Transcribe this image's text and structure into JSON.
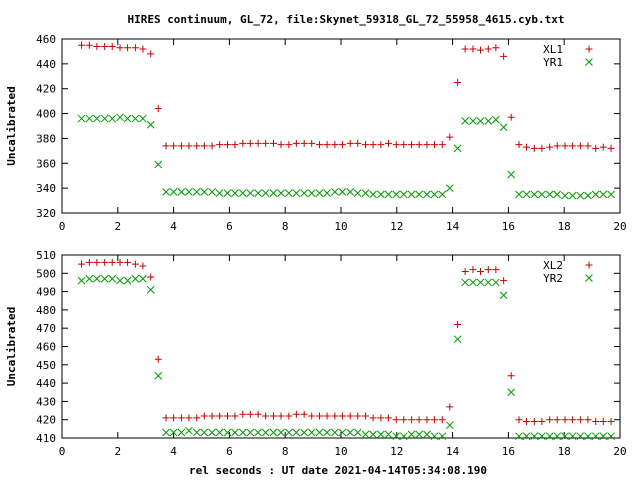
{
  "title": "HIRES continuum, GL_72, file:Skynet_59318_GL_72_55958_4615.cyb.txt",
  "xlabel": "rel seconds : UT date 2021-04-14T05:34:08.190",
  "colors": {
    "red": "#cc0000",
    "green": "#009900"
  },
  "chart_data": [
    {
      "type": "scatter",
      "ylabel": "Uncalibrated",
      "xlim": [
        0,
        20
      ],
      "ylim": [
        320,
        460
      ],
      "xticks": [
        0,
        2,
        4,
        6,
        8,
        10,
        12,
        14,
        16,
        18,
        20
      ],
      "yticks": [
        320,
        340,
        360,
        380,
        400,
        420,
        440,
        460
      ],
      "legend": "top-right",
      "x": [
        0.7,
        0.98,
        1.25,
        1.53,
        1.8,
        2.08,
        2.35,
        2.63,
        2.9,
        3.18,
        3.45,
        3.73,
        4.0,
        4.28,
        4.55,
        4.83,
        5.1,
        5.38,
        5.65,
        5.93,
        6.2,
        6.48,
        6.75,
        7.03,
        7.3,
        7.58,
        7.85,
        8.13,
        8.4,
        8.68,
        8.95,
        9.23,
        9.5,
        9.78,
        10.05,
        10.33,
        10.6,
        10.88,
        11.15,
        11.43,
        11.7,
        11.98,
        12.25,
        12.53,
        12.8,
        13.08,
        13.35,
        13.63,
        13.9,
        14.18,
        14.45,
        14.73,
        15.0,
        15.28,
        15.55,
        15.83,
        16.1,
        16.38,
        16.65,
        16.93,
        17.2,
        17.48,
        17.75,
        18.03,
        18.3,
        18.58,
        18.85,
        19.13,
        19.4,
        19.68
      ],
      "series": [
        {
          "name": "XL1",
          "marker": "plus",
          "color": "#cc0000",
          "values": [
            455,
            455,
            454,
            454,
            454,
            453,
            453,
            453,
            452,
            448,
            404,
            374,
            374,
            374,
            374,
            374,
            374,
            374,
            375,
            375,
            375,
            376,
            376,
            376,
            376,
            376,
            375,
            375,
            376,
            376,
            376,
            375,
            375,
            375,
            375,
            376,
            376,
            375,
            375,
            375,
            376,
            375,
            375,
            375,
            375,
            375,
            375,
            375,
            381,
            425,
            452,
            452,
            451,
            452,
            453,
            446,
            397,
            375,
            373,
            372,
            372,
            373,
            374,
            374,
            374,
            374,
            374,
            372,
            373,
            372
          ]
        },
        {
          "name": "YR1",
          "marker": "cross",
          "color": "#009900",
          "values": [
            396,
            396,
            396,
            396,
            396,
            397,
            396,
            396,
            396,
            391,
            359,
            337,
            337,
            337,
            337,
            337,
            337,
            337,
            336,
            336,
            336,
            336,
            336,
            336,
            336,
            336,
            336,
            336,
            336,
            336,
            336,
            336,
            336,
            337,
            337,
            337,
            336,
            336,
            335,
            335,
            335,
            335,
            335,
            335,
            335,
            335,
            335,
            335,
            340,
            372,
            394,
            394,
            394,
            394,
            395,
            389,
            351,
            335,
            335,
            335,
            335,
            335,
            335,
            334,
            334,
            334,
            334,
            335,
            335,
            335
          ]
        }
      ]
    },
    {
      "type": "scatter",
      "ylabel": "Uncalibrated",
      "xlim": [
        0,
        20
      ],
      "ylim": [
        410,
        510
      ],
      "xticks": [
        0,
        2,
        4,
        6,
        8,
        10,
        12,
        14,
        16,
        18,
        20
      ],
      "yticks": [
        410,
        420,
        430,
        440,
        450,
        460,
        470,
        480,
        490,
        500,
        510
      ],
      "legend": "top-right",
      "x": [
        0.7,
        0.98,
        1.25,
        1.53,
        1.8,
        2.08,
        2.35,
        2.63,
        2.9,
        3.18,
        3.45,
        3.73,
        4.0,
        4.28,
        4.55,
        4.83,
        5.1,
        5.38,
        5.65,
        5.93,
        6.2,
        6.48,
        6.75,
        7.03,
        7.3,
        7.58,
        7.85,
        8.13,
        8.4,
        8.68,
        8.95,
        9.23,
        9.5,
        9.78,
        10.05,
        10.33,
        10.6,
        10.88,
        11.15,
        11.43,
        11.7,
        11.98,
        12.25,
        12.53,
        12.8,
        13.08,
        13.35,
        13.63,
        13.9,
        14.18,
        14.45,
        14.73,
        15.0,
        15.28,
        15.55,
        15.83,
        16.1,
        16.38,
        16.65,
        16.93,
        17.2,
        17.48,
        17.75,
        18.03,
        18.3,
        18.58,
        18.85,
        19.13,
        19.4,
        19.68
      ],
      "series": [
        {
          "name": "XL2",
          "marker": "plus",
          "color": "#cc0000",
          "values": [
            505,
            506,
            506,
            506,
            506,
            506,
            506,
            505,
            504,
            498,
            453,
            421,
            421,
            421,
            421,
            421,
            422,
            422,
            422,
            422,
            422,
            423,
            423,
            423,
            422,
            422,
            422,
            422,
            423,
            423,
            422,
            422,
            422,
            422,
            422,
            422,
            422,
            422,
            421,
            421,
            421,
            420,
            420,
            420,
            420,
            420,
            420,
            420,
            427,
            472,
            501,
            502,
            501,
            502,
            502,
            496,
            444,
            420,
            419,
            419,
            419,
            420,
            420,
            420,
            420,
            420,
            420,
            419,
            419,
            419
          ]
        },
        {
          "name": "YR2",
          "marker": "cross",
          "color": "#009900",
          "values": [
            496,
            497,
            497,
            497,
            497,
            496,
            496,
            497,
            497,
            491,
            444,
            413,
            413,
            413,
            414,
            413,
            413,
            413,
            413,
            413,
            413,
            413,
            413,
            413,
            413,
            413,
            413,
            413,
            413,
            413,
            413,
            413,
            413,
            413,
            413,
            413,
            413,
            412,
            412,
            412,
            412,
            411,
            411,
            412,
            412,
            412,
            411,
            411,
            417,
            464,
            495,
            495,
            495,
            495,
            495,
            488,
            435,
            411,
            411,
            411,
            411,
            411,
            411,
            411,
            411,
            411,
            411,
            411,
            411,
            411
          ]
        }
      ]
    }
  ]
}
